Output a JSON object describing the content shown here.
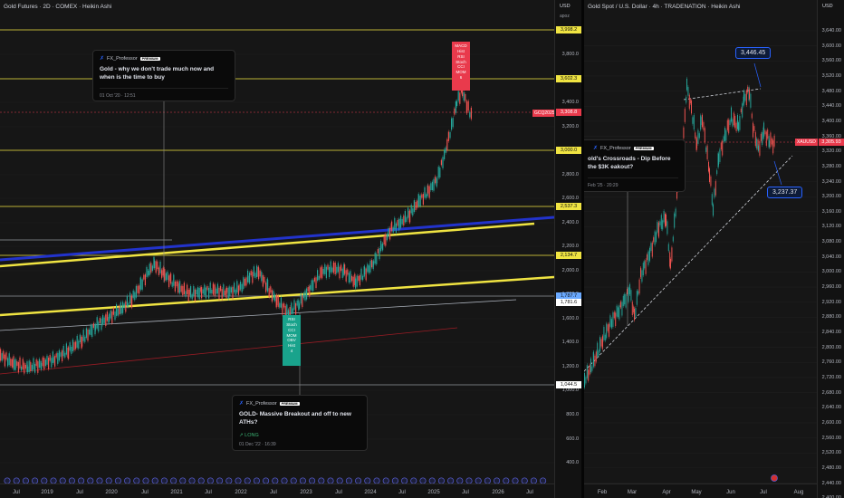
{
  "left_chart": {
    "title": "Gold Futures · 2D · COMEX · Heikin Ashi",
    "unit": "USD",
    "sub": "apoz",
    "y_ticks": [
      "3,800.0",
      "3,600.0",
      "3,400.0",
      "3,200.0",
      "2,800.0",
      "2,600.0",
      "2,400.0",
      "2,200.0",
      "2,000.0",
      "1,800.0",
      "1,600.0",
      "1,400.0",
      "1,200.0",
      "1,000.0",
      "800.0",
      "600.0",
      "400.0"
    ],
    "levels": [
      {
        "label": "3,998.2",
        "color": "#f0e442"
      },
      {
        "label": "3,602.3",
        "color": "#f0e442"
      },
      {
        "label": "3,308.8",
        "color": "#e93a4c"
      },
      {
        "label": "3,000.0",
        "color": "#f0e442"
      },
      {
        "label": "2,537.3",
        "color": "#f0e442"
      },
      {
        "label": "2,134.7",
        "color": "#f0e442"
      },
      {
        "label": "1,787.7",
        "color": "#6aa9ff"
      },
      {
        "label": "1,781.6",
        "color": "#ffffff"
      },
      {
        "label": "1,044.5",
        "color": "#ffffff"
      }
    ],
    "symbol_tag": "GCQ2025",
    "x_ticks": [
      "Jul",
      "2019",
      "Jul",
      "2020",
      "Jul",
      "2021",
      "Jul",
      "2022",
      "Jul",
      "2023",
      "Jul",
      "2024",
      "Jul",
      "2025",
      "Jul",
      "2026",
      "Jul"
    ],
    "idea_card_1": {
      "author": "FX_Professor",
      "badge": "PREMIUM",
      "title": "Gold - why we don't trade much now and when is the time to buy",
      "date": "01 Oct '20 · 12:51"
    },
    "idea_card_2": {
      "author": "FX_Professor",
      "badge": "PREMIUM",
      "title": "GOLD- Massive Breakout and off to new ATHs?",
      "direction": "LONG",
      "date": "01 Dec '22 · 16:39"
    },
    "signal_top": [
      "MACD",
      "Hist",
      "RSI",
      "Stoch",
      "CCI",
      "MOM",
      "6"
    ],
    "signal_bottom": [
      "RSI",
      "Stoch",
      "CCI",
      "MOM",
      "OBV",
      "Hist",
      "4"
    ]
  },
  "right_chart": {
    "title": "Gold Spot / U.S. Dollar · 4h · TRADENATION · Heikin Ashi",
    "unit": "USD",
    "y_ticks": [
      "3,640.00",
      "3,600.00",
      "3,560.00",
      "3,520.00",
      "3,480.00",
      "3,440.00",
      "3,400.00",
      "3,360.00",
      "3,320.00",
      "3,280.00",
      "3,240.00",
      "3,200.00",
      "3,160.00",
      "3,120.00",
      "3,080.00",
      "3,040.00",
      "3,000.00",
      "2,960.00",
      "2,920.00",
      "2,880.00",
      "2,840.00",
      "2,800.00",
      "2,760.00",
      "2,720.00",
      "2,680.00",
      "2,640.00",
      "2,600.00",
      "2,560.00",
      "2,520.00",
      "2,480.00",
      "2,440.00",
      "2,400.00"
    ],
    "price_tag": "3,305.93",
    "symbol_tag": "XAUUSD",
    "callout_high": "3,446.45",
    "callout_low": "3,237.37",
    "x_ticks": [
      "Feb",
      "Mar",
      "Apr",
      "May",
      "Jun",
      "Jul",
      "Aug"
    ],
    "idea_card": {
      "author": "FX_Professor",
      "badge": "PREMIUM",
      "title": "old's Crossroads - Dip Before the $3K eakout?",
      "date": "Feb '25 · 20:29"
    }
  }
}
